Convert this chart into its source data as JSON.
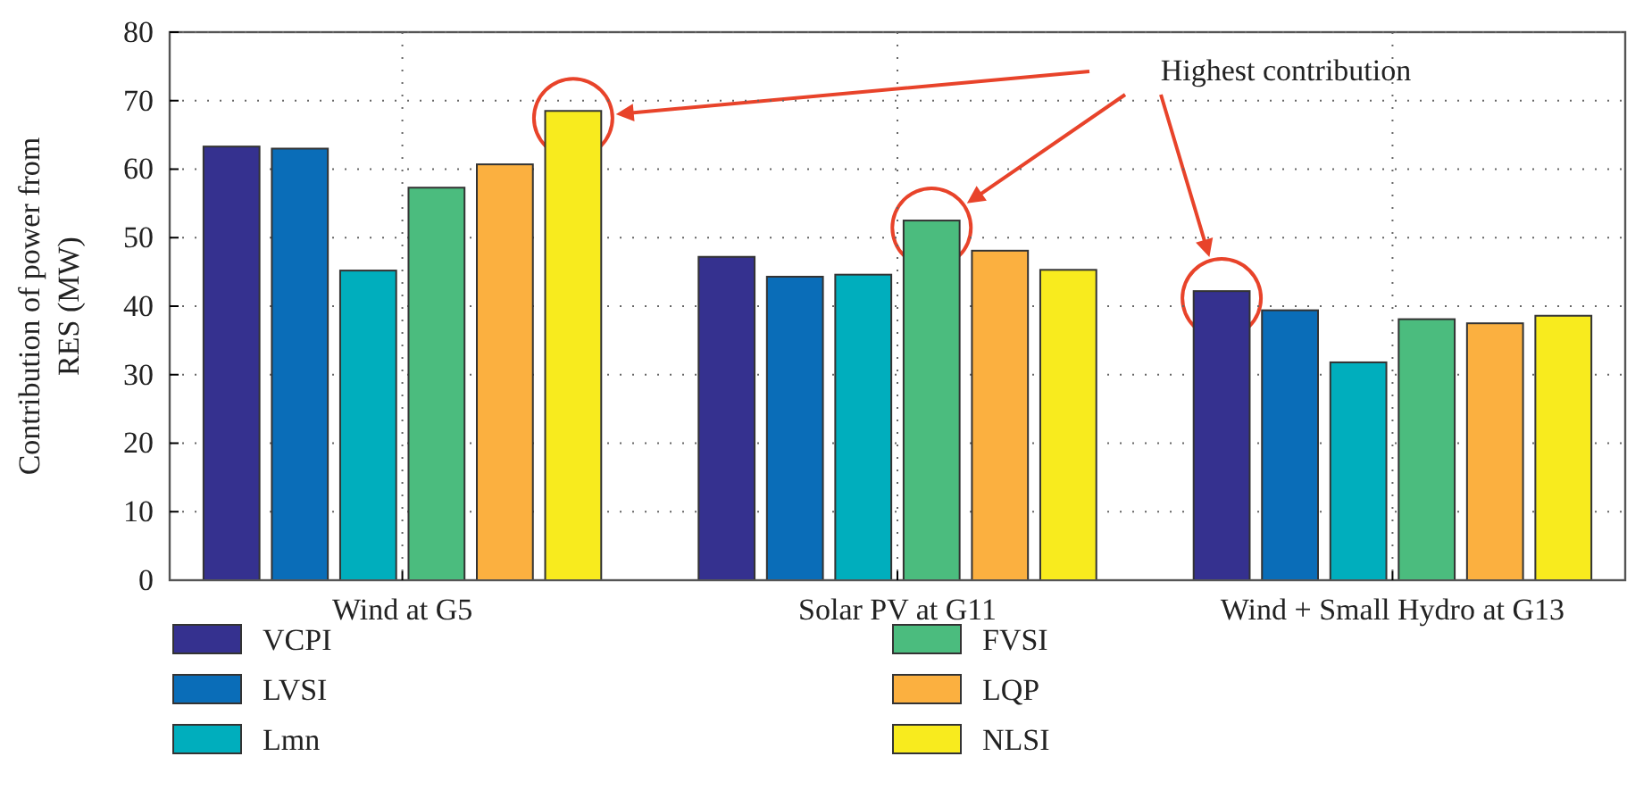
{
  "chart_data": {
    "type": "bar",
    "ylabel": "Contribution of power from RES (MW)",
    "categories": [
      "Wind at G5",
      "Solar PV at G11",
      "Wind + Small Hydro at G13"
    ],
    "series": [
      {
        "name": "VCPI",
        "color": "#35318f",
        "values": [
          63.3,
          47.2,
          42.2
        ]
      },
      {
        "name": "LVSI",
        "color": "#0a6db8",
        "values": [
          63.0,
          44.3,
          39.4
        ]
      },
      {
        "name": "Lmn",
        "color": "#00aebd",
        "values": [
          45.2,
          44.6,
          31.8
        ]
      },
      {
        "name": "FVSI",
        "color": "#4bbc7e",
        "values": [
          57.3,
          52.5,
          38.1
        ]
      },
      {
        "name": "LQP",
        "color": "#fbb040",
        "values": [
          60.7,
          48.1,
          37.5
        ]
      },
      {
        "name": "NLSI",
        "color": "#f8eb1e",
        "values": [
          68.5,
          45.3,
          38.6
        ]
      }
    ],
    "ylim": [
      0,
      80
    ],
    "yticks": [
      0,
      10,
      20,
      30,
      40,
      50,
      60,
      70,
      80
    ],
    "grid": true,
    "legend": "bottom",
    "annotations": [
      "Highest contribution"
    ]
  }
}
